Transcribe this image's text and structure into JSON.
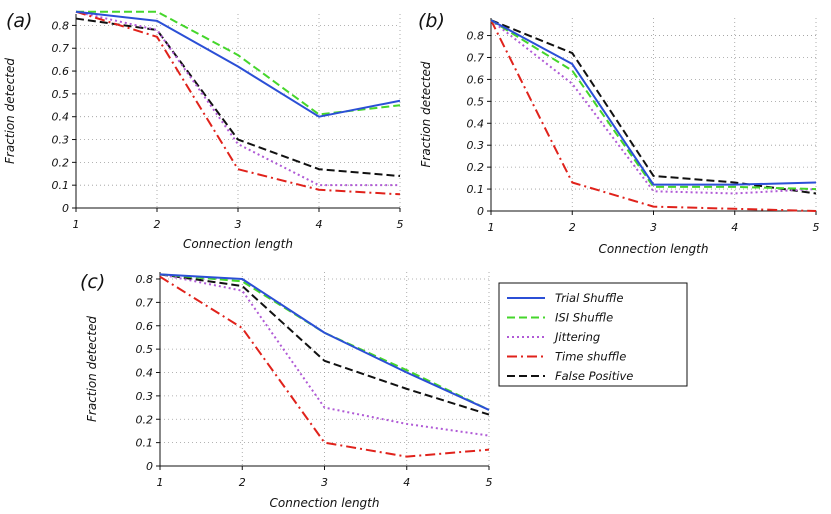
{
  "chart_data": [
    {
      "type": "line",
      "label": "(a)",
      "xlabel": "Connection length",
      "ylabel": "Fraction detected",
      "x": [
        1,
        2,
        3,
        4,
        5
      ],
      "xlim": [
        1,
        5
      ],
      "ylim": [
        0,
        0.85
      ],
      "xticks": [
        "1",
        "2",
        "3",
        "4",
        "5"
      ],
      "yticks": [
        0,
        0.1,
        0.2,
        0.3,
        0.4,
        0.5,
        0.6,
        0.7,
        0.8
      ],
      "ytick_labels": [
        "0",
        "0.1",
        "0.2",
        "0.3",
        "0.4",
        "0.5",
        "0.6",
        "0.7",
        "0.8"
      ],
      "grid": true,
      "series": [
        {
          "name": "Trial Shuffle",
          "values": [
            0.86,
            0.82,
            0.62,
            0.4,
            0.47
          ]
        },
        {
          "name": "ISI Shuffle",
          "values": [
            0.86,
            0.86,
            0.67,
            0.41,
            0.45
          ]
        },
        {
          "name": "Jittering",
          "values": [
            0.86,
            0.78,
            0.28,
            0.1,
            0.1
          ]
        },
        {
          "name": "Time shuffle",
          "values": [
            0.86,
            0.75,
            0.17,
            0.08,
            0.06
          ]
        },
        {
          "name": "False Positive",
          "values": [
            0.83,
            0.78,
            0.3,
            0.17,
            0.14
          ]
        }
      ]
    },
    {
      "type": "line",
      "label": "(b)",
      "xlabel": "Connection length",
      "ylabel": "Fraction detected",
      "x": [
        1,
        2,
        3,
        4,
        5
      ],
      "xlim": [
        1,
        5
      ],
      "ylim": [
        0,
        0.88
      ],
      "xticks": [
        "1",
        "2",
        "3",
        "4",
        "5"
      ],
      "yticks": [
        0,
        0.1,
        0.2,
        0.3,
        0.4,
        0.5,
        0.6,
        0.7,
        0.8
      ],
      "ytick_labels": [
        "0",
        "0.1",
        "0.2",
        "0.3",
        "0.4",
        "0.5",
        "0.6",
        "0.7",
        "0.8"
      ],
      "grid": true,
      "series": [
        {
          "name": "Trial Shuffle",
          "values": [
            0.87,
            0.67,
            0.12,
            0.12,
            0.13
          ]
        },
        {
          "name": "ISI Shuffle",
          "values": [
            0.87,
            0.64,
            0.11,
            0.11,
            0.1
          ]
        },
        {
          "name": "Jittering",
          "values": [
            0.87,
            0.58,
            0.09,
            0.08,
            0.1
          ]
        },
        {
          "name": "Time shuffle",
          "values": [
            0.87,
            0.13,
            0.02,
            0.01,
            0.0
          ]
        },
        {
          "name": "False Positive",
          "values": [
            0.87,
            0.72,
            0.16,
            0.13,
            0.08
          ]
        }
      ]
    },
    {
      "type": "line",
      "label": "(c)",
      "xlabel": "Connection length",
      "ylabel": "Fraction detected",
      "x": [
        1,
        2,
        3,
        4,
        5
      ],
      "xlim": [
        1,
        5
      ],
      "ylim": [
        0,
        0.83
      ],
      "xticks": [
        "1",
        "2",
        "3",
        "4",
        "5"
      ],
      "yticks": [
        0,
        0.1,
        0.2,
        0.3,
        0.4,
        0.5,
        0.6,
        0.7,
        0.8
      ],
      "ytick_labels": [
        "0",
        "0.1",
        "0.2",
        "0.3",
        "0.4",
        "0.5",
        "0.6",
        "0.7",
        "0.8"
      ],
      "grid": true,
      "series": [
        {
          "name": "Trial Shuffle",
          "values": [
            0.82,
            0.8,
            0.57,
            0.4,
            0.24
          ]
        },
        {
          "name": "ISI Shuffle",
          "values": [
            0.82,
            0.79,
            0.57,
            0.41,
            0.24
          ]
        },
        {
          "name": "Jittering",
          "values": [
            0.82,
            0.75,
            0.25,
            0.18,
            0.13
          ]
        },
        {
          "name": "Time shuffle",
          "values": [
            0.81,
            0.59,
            0.1,
            0.04,
            0.07
          ]
        },
        {
          "name": "False Positive",
          "values": [
            0.82,
            0.77,
            0.45,
            0.33,
            0.22
          ]
        }
      ]
    }
  ],
  "legend": {
    "placement": "right of panel (c)",
    "entries": [
      "Trial Shuffle",
      "ISI Shuffle",
      "Jittering",
      "Time shuffle",
      "False Positive"
    ]
  },
  "series_styles": {
    "Trial Shuffle": {
      "color": "#2b4fd6",
      "dash": "solid"
    },
    "ISI Shuffle": {
      "color": "#45d62b",
      "dash": "dashed"
    },
    "Jittering": {
      "color": "#b05ad6",
      "dash": "dotted"
    },
    "Time shuffle": {
      "color": "#e0221b",
      "dash": "dashdot"
    },
    "False Positive": {
      "color": "#111111",
      "dash": "dashed"
    }
  }
}
